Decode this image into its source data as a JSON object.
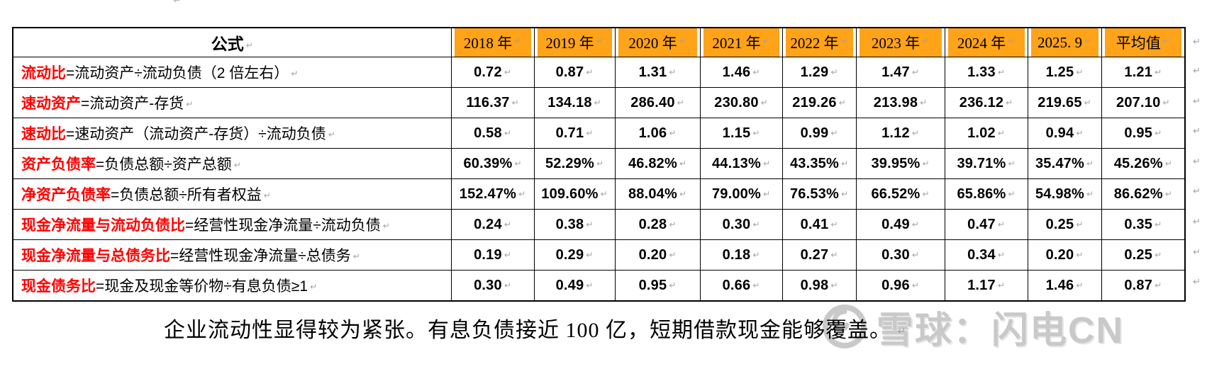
{
  "table": {
    "formula_header": "公式",
    "year_headers": [
      "2018 年",
      "2019 年",
      "2020 年",
      "2021 年",
      "2022 年",
      "2023 年",
      "2024 年",
      "2025. 9",
      "平均值"
    ],
    "rows": [
      {
        "term": "流动比",
        "rest": "=流动资产÷流动负债（2 倍左右）",
        "values": [
          "0.72",
          "0.87",
          "1.31",
          "1.46",
          "1.29",
          "1.47",
          "1.33",
          "1.25",
          "1.21"
        ]
      },
      {
        "term": "速动资产",
        "rest": "=流动资产-存货",
        "values": [
          "116.37",
          "134.18",
          "286.40",
          "230.80",
          "219.26",
          "213.98",
          "236.12",
          "219.65",
          "207.10"
        ]
      },
      {
        "term": "速动比",
        "rest": "=速动资产（流动资产-存货）÷流动负债",
        "values": [
          "0.58",
          "0.71",
          "1.06",
          "1.15",
          "0.99",
          "1.12",
          "1.02",
          "0.94",
          "0.95"
        ]
      },
      {
        "term": "资产负债率",
        "rest": "=负债总额÷资产总额",
        "values": [
          "60.39%",
          "52.29%",
          "46.82%",
          "44.13%",
          "43.35%",
          "39.95%",
          "39.71%",
          "35.47%",
          "45.26%"
        ]
      },
      {
        "term": "净资产负债率",
        "rest": "=负债总额÷所有者权益",
        "values": [
          "152.47%",
          "109.60%",
          "88.04%",
          "79.00%",
          "76.53%",
          "66.52%",
          "65.86%",
          "54.98%",
          "86.62%"
        ]
      },
      {
        "term": "现金净流量与流动负债比",
        "rest": "=经营性现金净流量÷流动负债",
        "values": [
          "0.24",
          "0.38",
          "0.28",
          "0.30",
          "0.41",
          "0.49",
          "0.47",
          "0.25",
          "0.35"
        ]
      },
      {
        "term": "现金净流量与总债务比",
        "rest": "=经营性现金净流量÷总债务",
        "values": [
          "0.19",
          "0.29",
          "0.20",
          "0.18",
          "0.27",
          "0.30",
          "0.34",
          "0.20",
          "0.25"
        ]
      },
      {
        "term": "现金债务比",
        "rest": "=现金及现金等价物÷有息负债≥1",
        "values": [
          "0.30",
          "0.49",
          "0.95",
          "0.66",
          "0.98",
          "0.96",
          "1.17",
          "1.46",
          "0.87"
        ]
      }
    ]
  },
  "note": {
    "text": "企业流动性显得较为紧张。有息负债接近 100 亿，短期借款现金能够覆盖。"
  },
  "watermark": {
    "brand": "雪球：闪电CN",
    "logo": "snowball-icon"
  },
  "marks": {
    "paragraph_mark": "↵"
  },
  "colors": {
    "header_fill": "#FFA318",
    "term_red": "#FF0000",
    "border": "#000000",
    "mark_gray": "#9EA4AA",
    "watermark_gray": "#C9C9C9"
  }
}
